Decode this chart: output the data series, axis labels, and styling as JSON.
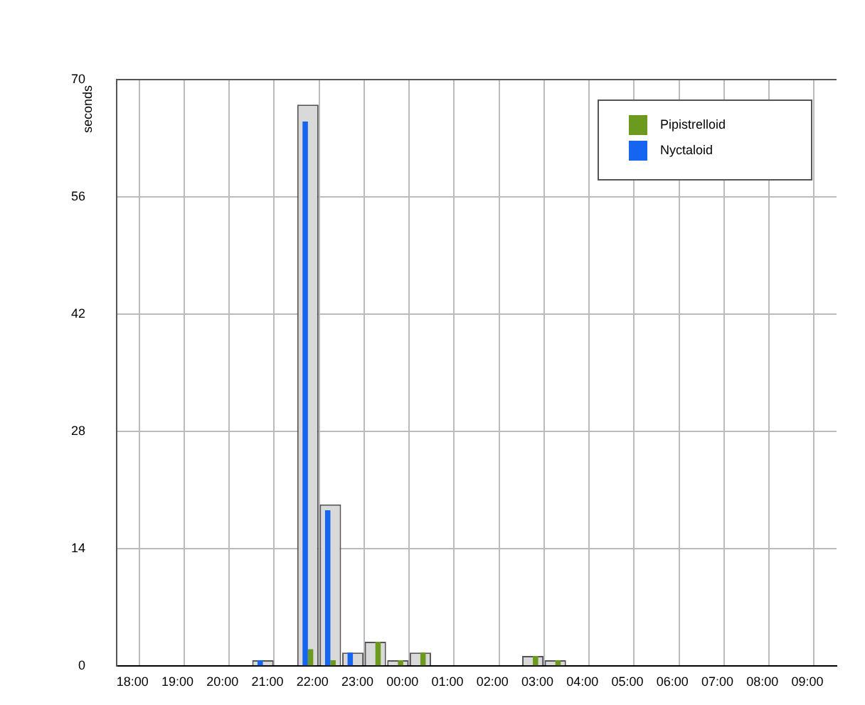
{
  "chart_data": {
    "type": "bar",
    "ylabel": "seconds",
    "categories": [
      "18:00",
      null,
      "19:00",
      null,
      "20:00",
      null,
      "21:00",
      null,
      "22:00",
      null,
      "23:00",
      null,
      "00:00",
      null,
      "01:00",
      null,
      "02:00",
      null,
      "03:00",
      null,
      "04:00",
      null,
      "05:00",
      null,
      "06:00",
      null,
      "07:00",
      null,
      "08:00",
      null,
      "09:00",
      null
    ],
    "series": [
      {
        "color": "#d9d9d9",
        "values": [
          0,
          0,
          0,
          0,
          0,
          0,
          0.7,
          0,
          67,
          19.3,
          1.6,
          2.9,
          0.7,
          1.6,
          0,
          0,
          0,
          0,
          1.2,
          0.7,
          0,
          0,
          0,
          0,
          0,
          0,
          0,
          0,
          0,
          0,
          0,
          0
        ]
      },
      {
        "name": "Pipistrelloid",
        "color": "#6b9a1f",
        "values": [
          0,
          0,
          0,
          0,
          0,
          0,
          0,
          0,
          2,
          0.7,
          0,
          2.9,
          0.7,
          1.6,
          0,
          0,
          0,
          0,
          1.2,
          0.7,
          0,
          0,
          0,
          0,
          0,
          0,
          0,
          0,
          0,
          0,
          0,
          0
        ]
      },
      {
        "name": "Nyctaloid",
        "color": "#1565f0",
        "values": [
          0,
          0,
          0,
          0,
          0,
          0,
          0.7,
          0,
          65,
          18.6,
          1.6,
          0,
          0,
          0,
          0,
          0,
          0,
          0,
          0,
          0,
          0,
          0,
          0,
          0,
          0,
          0,
          0,
          0,
          0,
          0,
          0,
          0
        ]
      }
    ],
    "ylim": [
      0,
      70
    ],
    "yticks": [
      0,
      14,
      28,
      42,
      56,
      70
    ],
    "grid": true,
    "legend": "top right"
  }
}
